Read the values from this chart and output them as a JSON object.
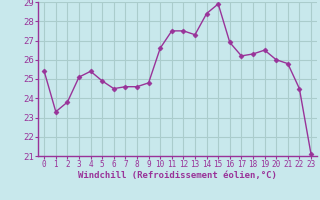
{
  "x": [
    0,
    1,
    2,
    3,
    4,
    5,
    6,
    7,
    8,
    9,
    10,
    11,
    12,
    13,
    14,
    15,
    16,
    17,
    18,
    19,
    20,
    21,
    22,
    23
  ],
  "y": [
    25.4,
    23.3,
    23.8,
    25.1,
    25.4,
    24.9,
    24.5,
    24.6,
    24.6,
    24.8,
    26.6,
    27.5,
    27.5,
    27.3,
    28.4,
    28.9,
    26.9,
    26.2,
    26.3,
    26.5,
    26.0,
    25.8,
    24.5,
    21.1
  ],
  "line_color": "#993399",
  "marker": "D",
  "marker_size": 2.5,
  "bg_color": "#c8e8ec",
  "grid_color": "#aacccc",
  "axis_line_color": "#993399",
  "text_color": "#993399",
  "xlabel": "Windchill (Refroidissement éolien,°C)",
  "ylim": [
    21,
    29
  ],
  "xlim": [
    -0.5,
    23.5
  ],
  "yticks": [
    21,
    22,
    23,
    24,
    25,
    26,
    27,
    28,
    29
  ],
  "xticks": [
    0,
    1,
    2,
    3,
    4,
    5,
    6,
    7,
    8,
    9,
    10,
    11,
    12,
    13,
    14,
    15,
    16,
    17,
    18,
    19,
    20,
    21,
    22,
    23
  ],
  "ytick_fontsize": 6.5,
  "xtick_fontsize": 5.5,
  "xlabel_fontsize": 6.5
}
